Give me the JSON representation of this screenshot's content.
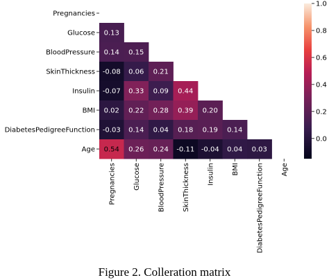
{
  "chart_data": {
    "type": "heatmap",
    "title": "",
    "xlabel": "",
    "ylabel": "",
    "labels": [
      "Pregnancies",
      "Glucose",
      "BloodPressure",
      "SkinThickness",
      "Insulin",
      "BMI",
      "DiabetesPedigreeFunction",
      "Age"
    ],
    "matrix": [
      [
        null,
        null,
        null,
        null,
        null,
        null,
        null,
        null
      ],
      [
        "0.13",
        null,
        null,
        null,
        null,
        null,
        null,
        null
      ],
      [
        "0.14",
        "0.15",
        null,
        null,
        null,
        null,
        null,
        null
      ],
      [
        "-0.08",
        "0.06",
        "0.21",
        null,
        null,
        null,
        null,
        null
      ],
      [
        "-0.07",
        "0.33",
        "0.09",
        "0.44",
        null,
        null,
        null,
        null
      ],
      [
        "0.02",
        "0.22",
        "0.28",
        "0.39",
        "0.20",
        null,
        null,
        null
      ],
      [
        "-0.03",
        "0.14",
        "0.04",
        "0.18",
        "0.19",
        "0.14",
        null,
        null
      ],
      [
        "0.54",
        "0.26",
        "0.24",
        "-0.11",
        "-0.04",
        "0.04",
        "0.03",
        null
      ]
    ],
    "mask": "upper-triangle-and-diagonal",
    "colormap": "rocket",
    "colorbar": {
      "range": [
        -0.15,
        1.0
      ],
      "ticks": [
        {
          "value": 1.0,
          "label": "1.0"
        },
        {
          "value": 0.8,
          "label": "0.8"
        },
        {
          "value": 0.6,
          "label": "0.6"
        },
        {
          "value": 0.4,
          "label": "0.4"
        },
        {
          "value": 0.2,
          "label": "0.2"
        },
        {
          "value": 0.0,
          "label": "0.0"
        }
      ]
    }
  },
  "caption": "Figure 2. Colleration matrix"
}
